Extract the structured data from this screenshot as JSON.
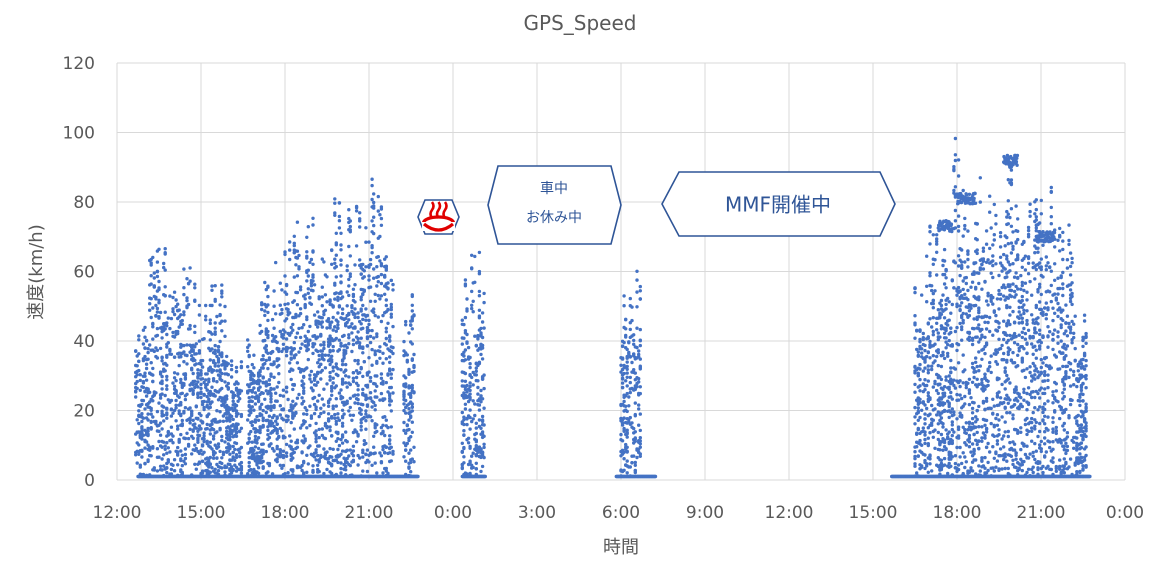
{
  "chart_data": {
    "type": "scatter",
    "title": "GPS_Speed",
    "xlabel": "時間",
    "ylabel": "速度(km/h)",
    "ylim": [
      0,
      120
    ],
    "xlim": [
      "12:00",
      "0:00 (+2d)"
    ],
    "y_ticks": [
      "0",
      "20",
      "40",
      "60",
      "80",
      "100",
      "120"
    ],
    "x_ticks": [
      "12:00",
      "15:00",
      "18:00",
      "21:00",
      "0:00",
      "3:00",
      "6:00",
      "9:00",
      "12:00",
      "15:00",
      "18:00",
      "21:00",
      "0:00"
    ],
    "grid": true,
    "legend": "none",
    "marker_color": "#4472c4",
    "series": [
      {
        "clusters": [
          {
            "from": "12:40",
            "to": "13:10",
            "max_speed": 44
          },
          {
            "from": "13:10",
            "to": "13:50",
            "max_speed": 73
          },
          {
            "from": "13:50",
            "to": "14:20",
            "max_speed": 55
          },
          {
            "from": "14:20",
            "to": "14:50",
            "max_speed": 64
          },
          {
            "from": "14:50",
            "to": "15:20",
            "max_speed": 53
          },
          {
            "from": "15:20",
            "to": "15:55",
            "max_speed": 57
          },
          {
            "from": "15:55",
            "to": "16:30",
            "max_speed": 37
          },
          {
            "from": "16:40",
            "to": "17:10",
            "max_speed": 45
          },
          {
            "from": "17:10",
            "to": "17:50",
            "max_speed": 63
          },
          {
            "from": "17:50",
            "to": "18:30",
            "max_speed": 76
          },
          {
            "from": "18:30",
            "to": "19:10",
            "max_speed": 78
          },
          {
            "from": "19:10",
            "to": "19:40",
            "max_speed": 75
          },
          {
            "from": "19:40",
            "to": "20:00",
            "max_speed": 91
          },
          {
            "from": "20:00",
            "to": "20:30",
            "max_speed": 82
          },
          {
            "from": "20:30",
            "to": "21:00",
            "max_speed": 80
          },
          {
            "from": "21:00",
            "to": "21:30",
            "max_speed": 88
          },
          {
            "from": "21:30",
            "to": "21:55",
            "max_speed": 67
          },
          {
            "from": "22:15",
            "to": "22:40",
            "max_speed": 62
          },
          {
            "from": "0:20",
            "to": "0:40",
            "max_speed": 59
          },
          {
            "from": "0:40",
            "to": "1:10",
            "max_speed": 67
          },
          {
            "from": "6:00",
            "to": "6:20",
            "max_speed": 57
          },
          {
            "from": "6:20",
            "to": "6:45",
            "max_speed": 61
          },
          {
            "from": "16:30",
            "to": "16:55",
            "max_speed": 64
          },
          {
            "from": "16:55",
            "to": "17:20",
            "max_speed": 75
          },
          {
            "from": "17:20",
            "to": "17:50",
            "max_speed": 80
          },
          {
            "from": "17:50",
            "to": "18:10",
            "max_speed": 99
          },
          {
            "from": "18:10",
            "to": "18:40",
            "max_speed": 85
          },
          {
            "from": "18:40",
            "to": "19:10",
            "max_speed": 93
          },
          {
            "from": "19:10",
            "to": "19:40",
            "max_speed": 89
          },
          {
            "from": "19:40",
            "to": "20:00",
            "max_speed": 97
          },
          {
            "from": "20:00",
            "to": "20:30",
            "max_speed": 91
          },
          {
            "from": "20:30",
            "to": "20:50",
            "max_speed": 88
          },
          {
            "from": "20:50",
            "to": "21:15",
            "max_speed": 82
          },
          {
            "from": "21:15",
            "to": "21:40",
            "max_speed": 88
          },
          {
            "from": "21:40",
            "to": "22:10",
            "max_speed": 76
          },
          {
            "from": "22:10",
            "to": "22:40",
            "max_speed": 49
          }
        ],
        "stationary_segments": [
          {
            "from": "12:45",
            "to": "22:45",
            "speed": 1
          },
          {
            "from": "0:20",
            "to": "1:10",
            "speed": 1
          },
          {
            "from": "5:50",
            "to": "7:15",
            "speed": 1
          },
          {
            "from": "15:40",
            "to": "22:45",
            "speed": 1
          }
        ],
        "plateau_points": [
          {
            "from": "18:00",
            "to": "18:40",
            "speed": 81
          },
          {
            "from": "19:40",
            "to": "20:10",
            "speed": 92
          },
          {
            "from": "20:50",
            "to": "21:30",
            "speed": 70
          },
          {
            "from": "17:20",
            "to": "17:50",
            "speed": 73
          }
        ]
      }
    ],
    "annotations": [
      {
        "id": "onsen",
        "icon": "hot-spring-icon",
        "text": "",
        "at_time": "23:55",
        "y": 76
      },
      {
        "id": "car_rest",
        "lines": [
          "車中",
          "お休み中"
        ],
        "at_time": "3:00",
        "y": 80
      },
      {
        "id": "mmf",
        "text": "MMF開催中",
        "at_time": "12:00",
        "y": 80
      }
    ]
  }
}
